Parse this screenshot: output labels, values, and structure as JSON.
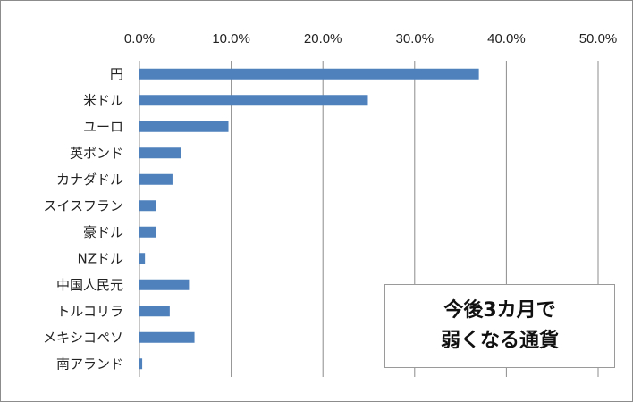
{
  "chart_data": {
    "type": "bar",
    "orientation": "horizontal",
    "title_lines": [
      "今後3カ月で",
      "弱くなる通貨"
    ],
    "categories": [
      "円",
      "米ドル",
      "ユーロ",
      "英ポンド",
      "カナダドル",
      "スイスフラン",
      "豪ドル",
      "NZドル",
      "中国人民元",
      "トルコリラ",
      "メキシコペソ",
      "南アランド"
    ],
    "values": [
      37.0,
      24.9,
      9.7,
      4.5,
      3.6,
      1.8,
      1.8,
      0.6,
      5.4,
      3.3,
      6.0,
      0.3
    ],
    "xlim": [
      0,
      50
    ],
    "x_ticks": [
      "0.0%",
      "10.0%",
      "20.0%",
      "30.0%",
      "40.0%",
      "50.0%"
    ],
    "xlabel": "",
    "ylabel": "",
    "grid": "vertical",
    "axis_position": "top",
    "bar_color": "#4f81bd",
    "grid_color": "#8c8c8c"
  }
}
